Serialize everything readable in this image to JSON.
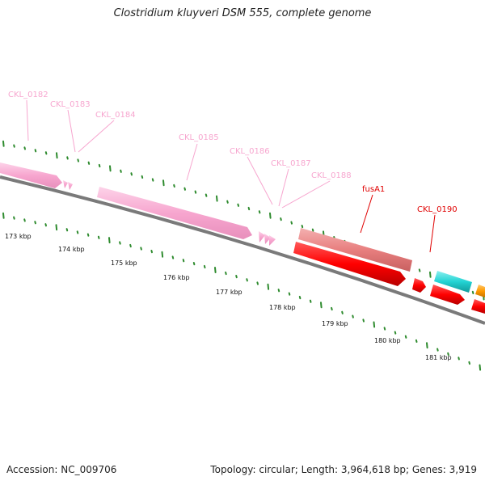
{
  "title": "Clostridium kluyveri DSM 555, complete genome",
  "footer": {
    "accession": "Accession: NC_009706",
    "summary": "Topology: circular; Length: 3,964,618 bp; Genes: 3,919"
  },
  "colors": {
    "hypothetical": "#f7a6cf",
    "named": "#e00000",
    "cds": "#ff0000",
    "cds_light": "#e87f7f",
    "cyan": "#22d3d3",
    "orange": "#ff9a00",
    "backbone": "#7a7a7a",
    "tick": "#2e8b2e"
  },
  "gene_labels": [
    {
      "name": "CKL_0182",
      "type": "hypothetical"
    },
    {
      "name": "CKL_0183",
      "type": "hypothetical"
    },
    {
      "name": "CKL_0184",
      "type": "hypothetical"
    },
    {
      "name": "CKL_0185",
      "type": "hypothetical"
    },
    {
      "name": "CKL_0186",
      "type": "hypothetical"
    },
    {
      "name": "CKL_0187",
      "type": "hypothetical"
    },
    {
      "name": "CKL_0188",
      "type": "hypothetical"
    },
    {
      "name": "fusA1",
      "type": "named"
    },
    {
      "name": "CKL_0190",
      "type": "named"
    }
  ],
  "scale_labels": [
    "173 kbp",
    "174 kbp",
    "175 kbp",
    "176 kbp",
    "177 kbp",
    "178 kbp",
    "179 kbp",
    "180 kbp",
    "181 kbp"
  ]
}
